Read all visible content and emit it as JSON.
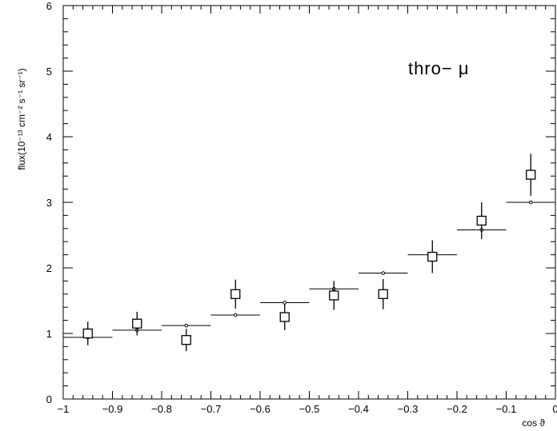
{
  "chart_data": {
    "type": "scatter",
    "title": "",
    "xlabel": "cos ϑ",
    "ylabel": "flux(10⁻¹³ cm⁻² s⁻¹ sr⁻¹)",
    "annotation": "thro− μ",
    "xlim": [
      -1,
      0
    ],
    "ylim": [
      0,
      6
    ],
    "xticks": [
      -1,
      -0.9,
      -0.8,
      -0.7,
      -0.6,
      -0.5,
      -0.4,
      -0.3,
      -0.2,
      -0.1,
      0
    ],
    "xtick_labels": [
      "−1",
      "−0.9",
      "−0.8",
      "−0.7",
      "−0.6",
      "−0.5",
      "−0.4",
      "−0.3",
      "−0.2",
      "−0.1",
      "0"
    ],
    "yticks": [
      0,
      1,
      2,
      3,
      4,
      5,
      6
    ],
    "ytick_labels": [
      "0",
      "1",
      "2",
      "3",
      "4",
      "5",
      "6"
    ],
    "grid": false,
    "series": [
      {
        "marker": "open-square",
        "x": [
          -0.95,
          -0.85,
          -0.75,
          -0.65,
          -0.55,
          -0.45,
          -0.35,
          -0.25,
          -0.15,
          -0.05
        ],
        "y": [
          1.0,
          1.15,
          0.9,
          1.6,
          1.25,
          1.58,
          1.6,
          2.17,
          2.72,
          3.42
        ],
        "yerr_low": [
          0.18,
          0.18,
          0.17,
          0.22,
          0.2,
          0.22,
          0.23,
          0.25,
          0.28,
          0.32
        ],
        "yerr_high": [
          0.18,
          0.18,
          0.17,
          0.22,
          0.2,
          0.22,
          0.23,
          0.25,
          0.28,
          0.32
        ]
      },
      {
        "marker": "small-open-circle-with-horizontal-bin-line",
        "x": [
          -0.95,
          -0.85,
          -0.75,
          -0.65,
          -0.55,
          -0.45,
          -0.35,
          -0.25,
          -0.15,
          -0.05
        ],
        "y": [
          0.94,
          1.05,
          1.12,
          1.28,
          1.47,
          1.68,
          1.92,
          2.2,
          2.58,
          3.0
        ],
        "bin_halfwidth": 0.05
      }
    ]
  }
}
